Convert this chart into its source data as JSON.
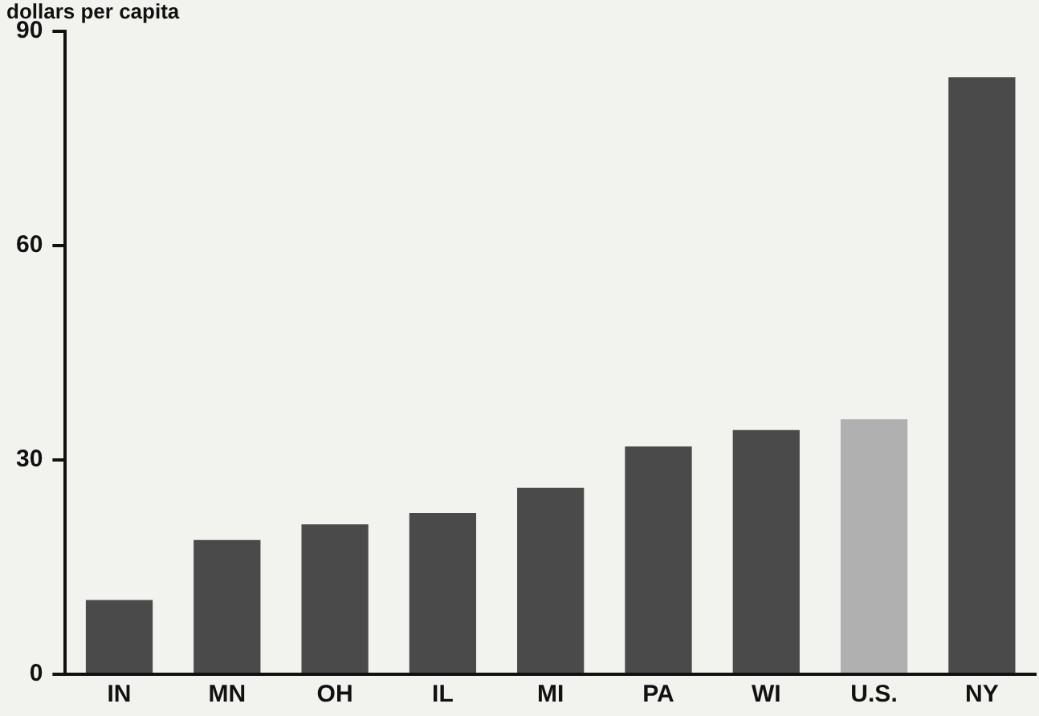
{
  "chart_data": {
    "type": "bar",
    "ylabel": "dollars per capita",
    "categories": [
      "IN",
      "MN",
      "OH",
      "IL",
      "MI",
      "PA",
      "WI",
      "U.S.",
      "NY"
    ],
    "values": [
      10.4,
      18.8,
      21,
      22.6,
      26.1,
      31.9,
      34.2,
      35.7,
      83.6
    ],
    "colors": [
      "#4a4a4a",
      "#4a4a4a",
      "#4a4a4a",
      "#4a4a4a",
      "#4a4a4a",
      "#4a4a4a",
      "#4a4a4a",
      "#b0b0b0",
      "#4a4a4a"
    ],
    "ylim": [
      0,
      90
    ],
    "yticks": [
      0,
      30,
      60,
      90
    ],
    "grid": false,
    "legend": false
  }
}
